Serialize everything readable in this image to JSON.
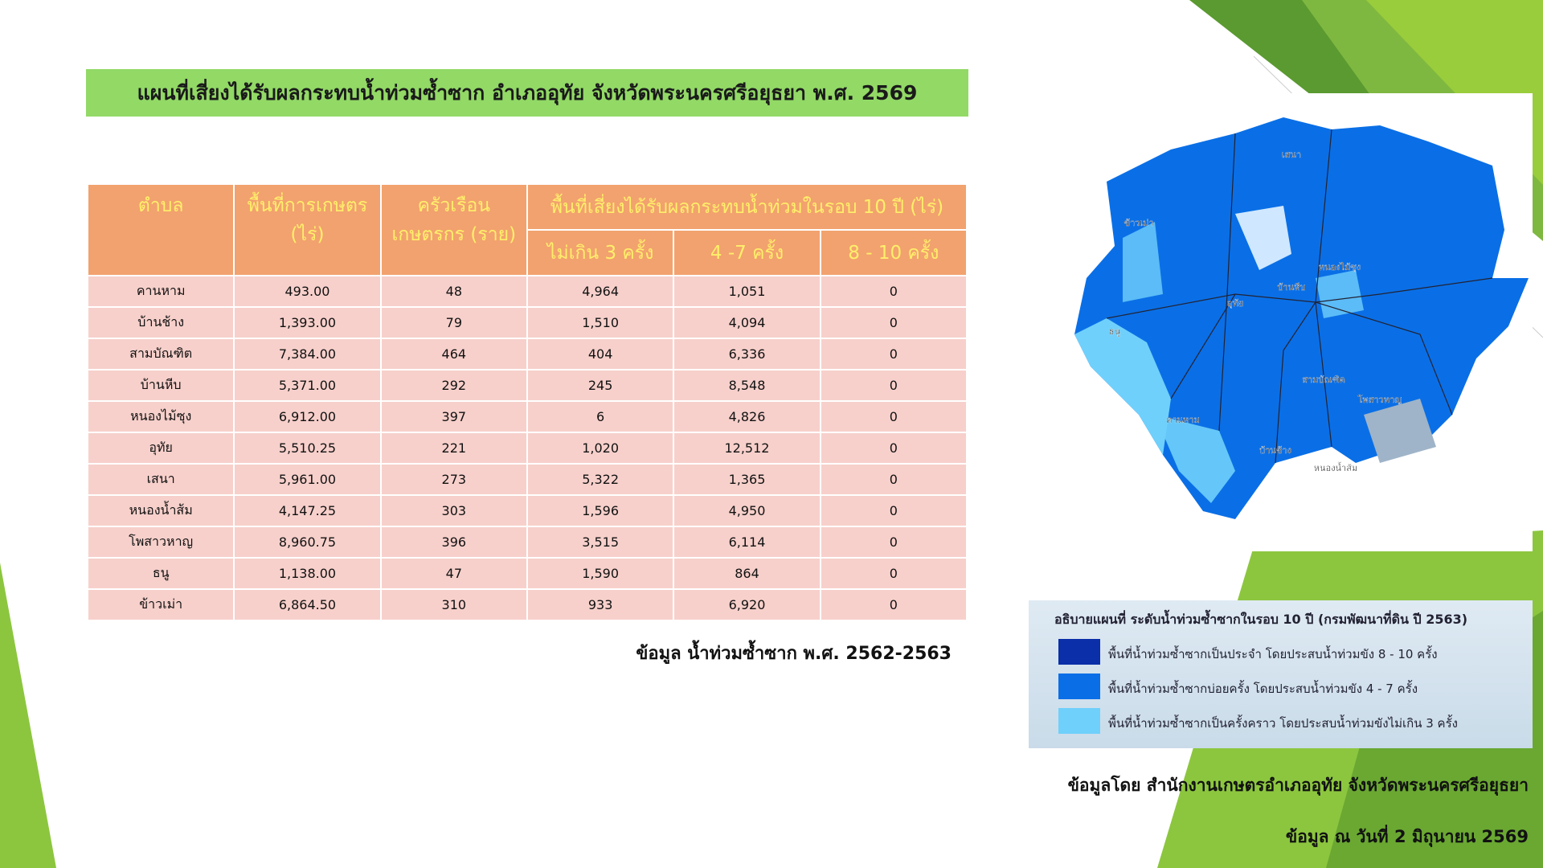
{
  "header": {
    "title": "แผนที่เสี่ยงได้รับผลกระทบน้ำท่วมซ้ำซาก อำเภออุทัย จังหวัดพระนครศรีอยุธยา พ.ศ. 2569"
  },
  "table": {
    "header": [
      "ตำบล",
      "พื้นที่การเกษตร (ไร่)",
      "ครัวเรือนเกษตรกร (ราย)",
      "พื้นที่เสี่ยงได้รับผลกระทบน้ำท่วมในรอบ 10 ปี (ไร่)"
    ],
    "subheader": [
      "ไม่เกิน 3 ครั้ง",
      "4 -7 ครั้ง",
      "8 - 10 ครั้ง"
    ],
    "rows": [
      [
        "คานหาม",
        "493.00",
        "48",
        "4,964",
        "1,051",
        "0"
      ],
      [
        "บ้านช้าง",
        "1,393.00",
        "79",
        "1,510",
        "4,094",
        "0"
      ],
      [
        "สามบัณฑิต",
        "7,384.00",
        "464",
        "404",
        "6,336",
        "0"
      ],
      [
        "บ้านหีบ",
        "5,371.00",
        "292",
        "245",
        "8,548",
        "0"
      ],
      [
        "หนองไม้ซุง",
        "6,912.00",
        "397",
        "6",
        "4,826",
        "0"
      ],
      [
        "อุทัย",
        "5,510.25",
        "221",
        "1,020",
        "12,512",
        "0"
      ],
      [
        "เสนา",
        "5,961.00",
        "273",
        "5,322",
        "1,365",
        "0"
      ],
      [
        "หนองน้ำส้ม",
        "4,147.25",
        "303",
        "1,596",
        "4,950",
        "0"
      ],
      [
        "โพสาวหาญ",
        "8,960.75",
        "396",
        "3,515",
        "6,114",
        "0"
      ],
      [
        "ธนู",
        "1,138.00",
        "47",
        "1,590",
        "864",
        "0"
      ],
      [
        "ข้าวเม่า",
        "6,864.50",
        "310",
        "933",
        "6,920",
        "0"
      ]
    ],
    "source": "ข้อมูล น้ำท่วมซ้ำซาก พ.ศ. 2562-2563"
  },
  "map": {
    "labels": [
      "ข้าวเม่า",
      "เสนา",
      "หนองไม้ซุง",
      "บ้านหีบ",
      "อุทัย",
      "ธนู",
      "สามบัณฑิต",
      "โพสาวหาญ",
      "คานหาม",
      "บ้านช้าง",
      "หนองน้ำส้ม"
    ]
  },
  "legend": {
    "title": "อธิบายแผนที่ ระดับน้ำท่วมซ้ำซากในรอบ 10 ปี  (กรมพัฒนาที่ดิน ปี 2563)",
    "items": [
      {
        "label": "พื้นที่น้ำท่วมซ้ำซากเป็นประจำ โดยประสบน้ำท่วมขัง 8 - 10 ครั้ง",
        "color": "#0a2fa8"
      },
      {
        "label": "พื้นที่น้ำท่วมซ้ำซากบ่อยครั้ง โดยประสบน้ำท่วมขัง 4 - 7 ครั้ง",
        "color": "#0a6fe6"
      },
      {
        "label": "พื้นที่น้ำท่วมซ้ำซากเป็นครั้งคราว โดยประสบน้ำท่วมขังไม่เกิน 3 ครั้ง",
        "color": "#6fd0fb"
      }
    ]
  },
  "footer": {
    "credit": "ข้อมูลโดย สำนักงานเกษตรอำเภออุทัย จังหวัดพระนครศรีอยุธยา",
    "date": "ข้อมูล ณ วันที่ 2 มิถุนายน 2569"
  }
}
